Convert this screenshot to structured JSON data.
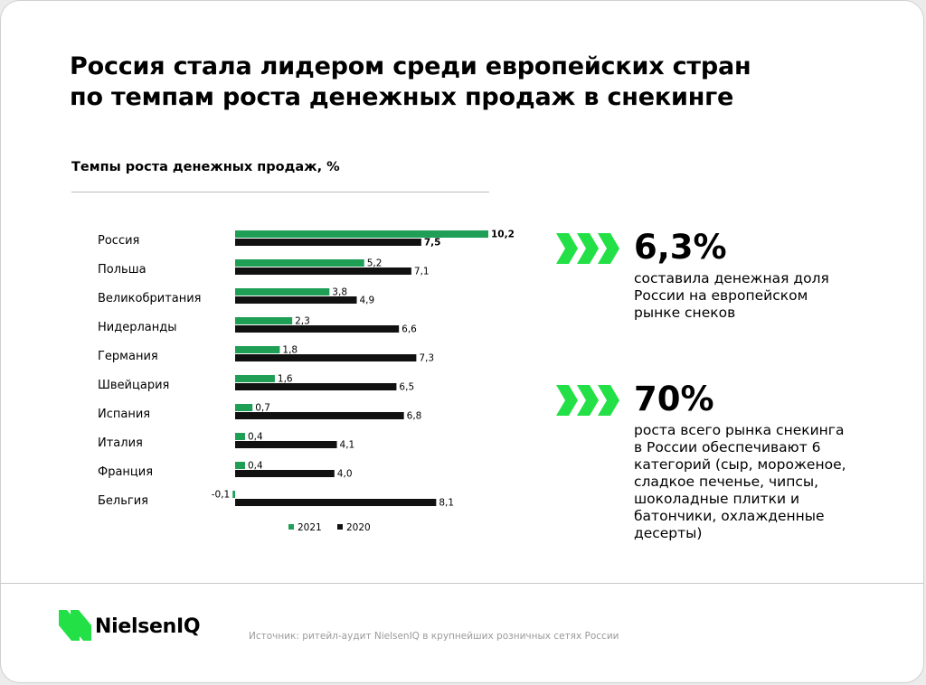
{
  "title_line1": "Россия стала лидером среди европейских стран",
  "title_line2": "по темпам роста денежных продаж в снекинге",
  "colors": {
    "green": "#1f9e55",
    "dark": "#111111",
    "accent": "#22e046"
  },
  "chart_data": {
    "type": "bar",
    "orientation": "horizontal",
    "title": "Темпы роста денежных продаж, %",
    "categories": [
      "Россия",
      "Польша",
      "Великобритания",
      "Нидерланды",
      "Германия",
      "Швейцария",
      "Испания",
      "Италия",
      "Франция",
      "Бельгия"
    ],
    "series": [
      {
        "name": "2021",
        "color": "#1f9e55",
        "values": [
          10.2,
          5.2,
          3.8,
          2.3,
          1.8,
          1.6,
          0.7,
          0.4,
          0.4,
          -0.1
        ],
        "labels": [
          "10,2",
          "5,2",
          "3,8",
          "2,3",
          "1,8",
          "1,6",
          "0,7",
          "0,4",
          "0,4",
          "-0,1"
        ]
      },
      {
        "name": "2020",
        "color": "#111111",
        "values": [
          7.5,
          7.1,
          4.9,
          6.6,
          7.3,
          6.5,
          6.8,
          4.1,
          4.0,
          8.1
        ],
        "labels": [
          "7,5",
          "7,1",
          "4,9",
          "6,6",
          "7,3",
          "6,5",
          "6,8",
          "4,1",
          "4,0",
          "8,1"
        ]
      }
    ],
    "bold_category": "Россия",
    "legend_position": "bottom",
    "grid": false
  },
  "kpis": [
    {
      "value": "6,3%",
      "lines": [
        "составила денежная доля",
        "России на европейском",
        "рынке снеков"
      ]
    },
    {
      "value": "70%",
      "lines": [
        "роста всего рынка снекинга",
        "в России обеспечивают 6",
        "категорий (сыр, мороженое,",
        "сладкое печенье, чипсы,",
        "шоколадные плитки и",
        "батончики, охлажденные",
        "десерты)"
      ]
    }
  ],
  "brand": {
    "name": "NielsenIQ",
    "icon": "nielseniq-logo-icon"
  },
  "source": "Источник:  ритейл-аудит NielsenIQ в крупнейших розничных сетях России"
}
